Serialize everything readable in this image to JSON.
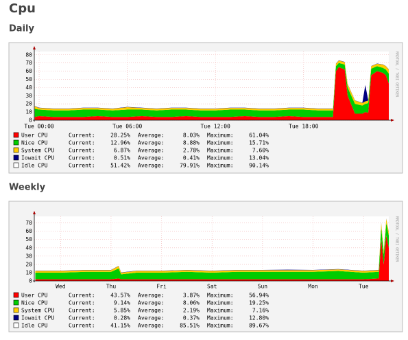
{
  "page_title": "Cpu",
  "watermark": "RRDTOOL / TOBI OETIKER",
  "stat_labels": [
    "Current:",
    "Average:",
    "Maximum:"
  ],
  "chart_data": [
    {
      "type": "area",
      "stacked": true,
      "title": "Daily",
      "grid": true,
      "x": [
        -0.3,
        0,
        1,
        2,
        3,
        4,
        5,
        6,
        7,
        8,
        9,
        10,
        11,
        12,
        13,
        14,
        15,
        16,
        17,
        18,
        19,
        20,
        20.2,
        20.4,
        20.8,
        21,
        21.5,
        22,
        22.2,
        22.4,
        22.6,
        23,
        23.4,
        23.6,
        23.8
      ],
      "xlim": [
        -0.33,
        23.8
      ],
      "xticks": [
        {
          "value": 0,
          "label": "Tue 00:00"
        },
        {
          "value": 6,
          "label": "Tue 06:00"
        },
        {
          "value": 12,
          "label": "Tue 12:00"
        },
        {
          "value": 18,
          "label": "Tue 18:00"
        }
      ],
      "ylim": [
        0,
        84
      ],
      "yticks": [
        0,
        10,
        20,
        30,
        40,
        50,
        60,
        70,
        80
      ],
      "series": [
        {
          "name": "User CPU",
          "color": "#ff0000",
          "current": "28.25%",
          "average": "8.03%",
          "maximum": "61.04%",
          "values": [
            4,
            5,
            4,
            4,
            4,
            5,
            4,
            4,
            5,
            4,
            4,
            5,
            4,
            4,
            4,
            5,
            4,
            4,
            5,
            4,
            4,
            4,
            60,
            65,
            62,
            30,
            8,
            8,
            10,
            9,
            55,
            60,
            58,
            55,
            45
          ]
        },
        {
          "name": "Nice CPU",
          "color": "#00cc00",
          "current": "12.96%",
          "average": "8.88%",
          "maximum": "15.71%",
          "values": [
            10,
            8,
            8,
            8,
            9,
            8,
            8,
            9,
            8,
            8,
            9,
            8,
            8,
            8,
            9,
            8,
            8,
            8,
            8,
            9,
            8,
            8,
            6,
            5,
            6,
            10,
            12,
            10,
            10,
            12,
            8,
            6,
            6,
            7,
            12
          ]
        },
        {
          "name": "System CPU",
          "color": "#ffcc00",
          "current": "6.87%",
          "average": "2.78%",
          "maximum": "7.60%",
          "values": [
            3,
            2,
            2,
            2,
            2,
            2,
            2,
            3,
            2,
            2,
            2,
            2,
            2,
            2,
            2,
            2,
            2,
            2,
            2,
            2,
            2,
            2,
            3,
            3,
            3,
            4,
            4,
            3,
            3,
            3,
            3,
            3,
            4,
            4,
            5
          ]
        },
        {
          "name": "Iowait CPU",
          "color": "#000080",
          "current": "0.51%",
          "average": "0.41%",
          "maximum": "13.04%",
          "values": [
            0.3,
            0.3,
            0.3,
            0.3,
            0.3,
            0.3,
            0.3,
            0.3,
            0.3,
            0.3,
            0.3,
            0.3,
            0.3,
            0.3,
            0.3,
            0.3,
            0.3,
            0.3,
            0.3,
            0.3,
            0.3,
            0.3,
            0.3,
            0.3,
            0.3,
            0.3,
            0.3,
            0.3,
            20,
            0.5,
            0.3,
            0.3,
            0.3,
            0.3,
            0.3
          ]
        },
        {
          "name": "Idle CPU",
          "color": "#ffffff",
          "current": "51.42%",
          "average": "79.91%",
          "maximum": "90.14%"
        }
      ]
    },
    {
      "type": "area",
      "stacked": true,
      "title": "Weekly",
      "grid": true,
      "x": [
        -0.5,
        0,
        0.5,
        1,
        1.15,
        1.2,
        1.5,
        2,
        2.5,
        3,
        3.5,
        4,
        4.5,
        5,
        5.5,
        6,
        6.3,
        6.35,
        6.4,
        6.45,
        6.5
      ],
      "xlim": [
        -0.52,
        6.5
      ],
      "xticks": [
        {
          "value": 0,
          "label": "Wed"
        },
        {
          "value": 1,
          "label": "Thu"
        },
        {
          "value": 2,
          "label": "Fri"
        },
        {
          "value": 3,
          "label": "Sat"
        },
        {
          "value": 4,
          "label": "Sun"
        },
        {
          "value": 5,
          "label": "Mon"
        },
        {
          "value": 6,
          "label": "Tue"
        }
      ],
      "ylim": [
        0,
        78
      ],
      "yticks": [
        0,
        10,
        20,
        30,
        40,
        50,
        60,
        70
      ],
      "series": [
        {
          "name": "User CPU",
          "color": "#ff0000",
          "current": "43.57%",
          "average": "3.87%",
          "maximum": "56.94%",
          "values": [
            2,
            2,
            2,
            2,
            3,
            2,
            2,
            2,
            2,
            2,
            2,
            2,
            2,
            2,
            2,
            2,
            3,
            50,
            20,
            55,
            40
          ]
        },
        {
          "name": "Nice CPU",
          "color": "#00cc00",
          "current": "9.14%",
          "average": "8.06%",
          "maximum": "19.25%",
          "values": [
            8,
            8,
            9,
            9,
            12,
            6,
            8,
            8,
            9,
            8,
            9,
            9,
            9,
            9,
            10,
            8,
            8,
            15,
            12,
            15,
            15
          ]
        },
        {
          "name": "System CPU",
          "color": "#ffcc00",
          "current": "5.85%",
          "average": "2.19%",
          "maximum": "7.16%",
          "values": [
            2,
            2,
            2,
            2,
            3,
            2,
            2,
            2,
            2,
            2,
            2,
            2,
            2,
            2,
            2,
            2,
            2,
            5,
            4,
            5,
            4
          ]
        },
        {
          "name": "Iowait CPU",
          "color": "#000080",
          "current": "0.28%",
          "average": "0.37%",
          "maximum": "12.80%",
          "values": [
            0.3,
            0.3,
            0.3,
            0.3,
            0.3,
            0.3,
            0.3,
            0.3,
            0.3,
            0.3,
            0.3,
            0.3,
            0.6,
            0.3,
            0.3,
            0.3,
            0.3,
            0.3,
            0.3,
            0.3,
            0.3
          ]
        },
        {
          "name": "Idle CPU",
          "color": "#ffffff",
          "current": "41.15%",
          "average": "85.51%",
          "maximum": "89.67%"
        }
      ]
    }
  ]
}
